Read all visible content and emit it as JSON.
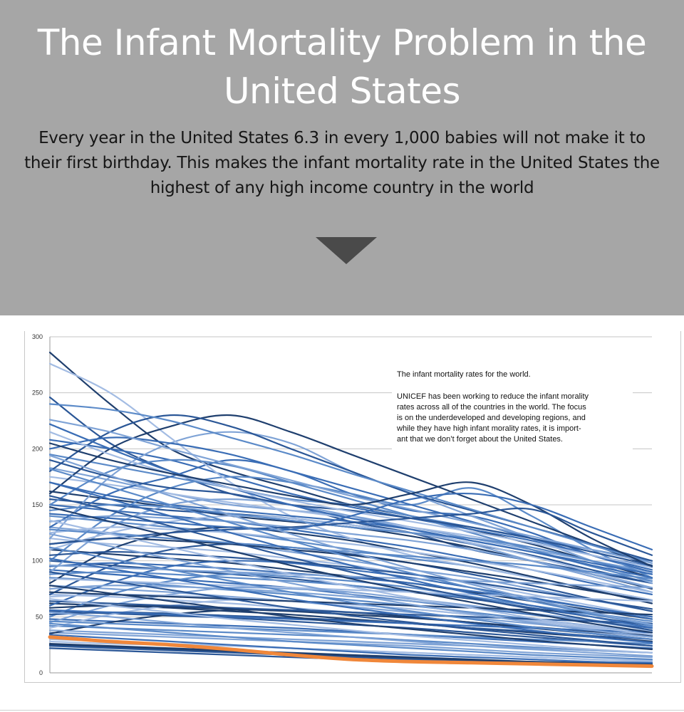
{
  "header": {
    "title": "The Infant Mortality Problem in the United States",
    "intro": "Every year in the United States 6.3 in every 1,000 babies will not make it to their first birthday. This makes the infant mortality rate in the United States the highest of any high income country in the world"
  },
  "chart_data": {
    "type": "line",
    "title": "",
    "xlabel": "",
    "ylabel": "",
    "ylim": [
      0,
      300
    ],
    "yticks": [
      0,
      50,
      100,
      150,
      200,
      250,
      300
    ],
    "grid": true,
    "x": [
      0,
      1,
      2,
      3,
      4,
      5,
      6,
      7,
      8,
      9,
      10
    ],
    "annotation": {
      "heading": "The infant mortality rates for the world.",
      "lines": [
        "UNICEF has been working to reduce the infant morality",
        "rates across all of the countries in the world. The focus",
        "is on the underdeveloped and developing regions, and",
        "while they have high infant morality rates, it is import-",
        "ant that we don’t forget about the United States."
      ]
    },
    "highlight_color": "#f0873a",
    "series_colors": [
      "#1f3f6e",
      "#2b5797",
      "#3a6db5",
      "#5b8ac8",
      "#7fa3d6",
      "#a3bce3"
    ],
    "highlight": {
      "values": [
        32,
        28,
        25,
        21,
        16,
        12,
        10,
        9,
        8,
        7,
        6
      ]
    },
    "series": [
      {
        "values": [
          286,
          240,
          200,
          180,
          165,
          150,
          140,
          128,
          115,
          100,
          85
        ]
      },
      {
        "values": [
          246,
          205,
          180,
          160,
          150,
          135,
          125,
          110,
          100,
          90,
          80
        ]
      },
      {
        "values": [
          208,
          200,
          190,
          175,
          160,
          148,
          138,
          128,
          118,
          105,
          95
        ]
      },
      {
        "values": [
          195,
          185,
          175,
          165,
          155,
          150,
          140,
          130,
          120,
          110,
          100
        ]
      },
      {
        "values": [
          183,
          172,
          160,
          150,
          145,
          140,
          130,
          120,
          110,
          100,
          90
        ]
      },
      {
        "values": [
          175,
          168,
          160,
          152,
          145,
          138,
          130,
          122,
          112,
          100,
          88
        ]
      },
      {
        "values": [
          162,
          155,
          148,
          140,
          135,
          130,
          122,
          112,
          100,
          88,
          75
        ]
      },
      {
        "values": [
          155,
          150,
          145,
          142,
          138,
          132,
          125,
          115,
          105,
          92,
          80
        ]
      },
      {
        "values": [
          150,
          145,
          140,
          135,
          128,
          120,
          112,
          102,
          92,
          80,
          70
        ]
      },
      {
        "values": [
          140,
          135,
          130,
          125,
          118,
          110,
          102,
          95,
          85,
          75,
          65
        ]
      },
      {
        "values": [
          130,
          125,
          120,
          115,
          108,
          100,
          92,
          85,
          75,
          65,
          55
        ]
      },
      {
        "values": [
          120,
          115,
          112,
          108,
          102,
          96,
          88,
          80,
          70,
          60,
          50
        ]
      },
      {
        "values": [
          110,
          106,
          102,
          98,
          92,
          86,
          80,
          72,
          64,
          56,
          48
        ]
      },
      {
        "values": [
          100,
          96,
          92,
          88,
          84,
          78,
          72,
          66,
          58,
          50,
          42
        ]
      },
      {
        "values": [
          92,
          88,
          84,
          80,
          76,
          70,
          64,
          58,
          52,
          46,
          40
        ]
      },
      {
        "values": [
          85,
          82,
          78,
          74,
          70,
          65,
          60,
          54,
          48,
          42,
          36
        ]
      },
      {
        "values": [
          78,
          75,
          72,
          68,
          64,
          59,
          54,
          49,
          44,
          39,
          34
        ]
      },
      {
        "values": [
          70,
          68,
          65,
          62,
          58,
          54,
          50,
          45,
          40,
          36,
          32
        ]
      },
      {
        "values": [
          62,
          60,
          58,
          55,
          52,
          48,
          44,
          40,
          36,
          32,
          28
        ]
      },
      {
        "values": [
          55,
          53,
          51,
          49,
          46,
          43,
          40,
          36,
          32,
          28,
          24
        ]
      },
      {
        "values": [
          48,
          46,
          44,
          42,
          40,
          37,
          34,
          31,
          28,
          25,
          22
        ]
      },
      {
        "values": [
          42,
          40,
          38,
          36,
          34,
          32,
          29,
          26,
          23,
          20,
          18
        ]
      },
      {
        "values": [
          36,
          34,
          32,
          30,
          28,
          26,
          24,
          21,
          18,
          16,
          14
        ]
      },
      {
        "values": [
          30,
          28,
          26,
          24,
          22,
          20,
          18,
          16,
          14,
          12,
          10
        ]
      },
      {
        "values": [
          25,
          23,
          21,
          19,
          17,
          15,
          13,
          11,
          10,
          9,
          8
        ]
      },
      {
        "values": [
          22,
          20,
          18,
          16,
          14,
          12,
          10,
          9,
          8,
          7,
          6
        ]
      },
      {
        "values": [
          130,
          160,
          175,
          190,
          180,
          160,
          145,
          140,
          125,
          105,
          90
        ]
      },
      {
        "values": [
          100,
          140,
          165,
          175,
          170,
          160,
          150,
          165,
          140,
          110,
          85
        ]
      },
      {
        "values": [
          120,
          175,
          205,
          215,
          205,
          180,
          160,
          140,
          120,
          100,
          80
        ]
      },
      {
        "values": [
          276,
          250,
          210,
          170,
          140,
          120,
          105,
          95,
          85,
          75,
          65
        ]
      },
      {
        "values": [
          160,
          200,
          220,
          230,
          215,
          195,
          175,
          155,
          135,
          115,
          95
        ]
      },
      {
        "values": [
          180,
          215,
          230,
          220,
          200,
          180,
          160,
          145,
          130,
          115,
          100
        ]
      },
      {
        "values": [
          200,
          210,
          205,
          195,
          180,
          165,
          150,
          135,
          120,
          105,
          92
        ]
      },
      {
        "values": [
          150,
          180,
          190,
          185,
          170,
          155,
          140,
          125,
          110,
          95,
          82
        ]
      },
      {
        "values": [
          90,
          130,
          150,
          155,
          150,
          140,
          128,
          115,
          100,
          86,
          72
        ]
      },
      {
        "values": [
          110,
          125,
          135,
          140,
          138,
          132,
          125,
          116,
          104,
          90,
          76
        ]
      },
      {
        "values": [
          80,
          110,
          125,
          130,
          125,
          118,
          108,
          98,
          86,
          74,
          62
        ]
      },
      {
        "values": [
          70,
          95,
          110,
          115,
          112,
          106,
          98,
          88,
          78,
          66,
          55
        ]
      },
      {
        "values": [
          60,
          80,
          95,
          100,
          98,
          92,
          85,
          76,
          67,
          58,
          48
        ]
      },
      {
        "values": [
          50,
          70,
          82,
          88,
          86,
          82,
          76,
          68,
          60,
          52,
          44
        ]
      },
      {
        "values": [
          45,
          60,
          70,
          76,
          75,
          72,
          66,
          60,
          53,
          46,
          38
        ]
      },
      {
        "values": [
          40,
          52,
          60,
          65,
          64,
          61,
          57,
          52,
          46,
          40,
          34
        ]
      },
      {
        "values": [
          35,
          45,
          52,
          56,
          56,
          54,
          50,
          45,
          40,
          35,
          30
        ]
      },
      {
        "values": [
          190,
          175,
          165,
          160,
          150,
          145,
          138,
          130,
          120,
          108,
          96
        ]
      },
      {
        "values": [
          170,
          158,
          150,
          145,
          140,
          135,
          128,
          118,
          108,
          96,
          85
        ]
      },
      {
        "values": [
          145,
          150,
          148,
          142,
          136,
          130,
          125,
          120,
          112,
          100,
          88
        ]
      },
      {
        "values": [
          135,
          140,
          138,
          135,
          130,
          124,
          118,
          110,
          100,
          88,
          76
        ]
      },
      {
        "values": [
          125,
          130,
          128,
          125,
          120,
          115,
          108,
          100,
          92,
          82,
          72
        ]
      },
      {
        "values": [
          115,
          120,
          118,
          115,
          110,
          105,
          98,
          90,
          82,
          73,
          64
        ]
      },
      {
        "values": [
          105,
          108,
          106,
          103,
          99,
          94,
          88,
          81,
          73,
          65,
          57
        ]
      },
      {
        "values": [
          95,
          98,
          96,
          93,
          89,
          85,
          80,
          73,
          66,
          58,
          50
        ]
      },
      {
        "values": [
          88,
          90,
          88,
          85,
          82,
          78,
          73,
          67,
          60,
          53,
          46
        ]
      },
      {
        "values": [
          75,
          78,
          77,
          75,
          72,
          68,
          64,
          59,
          53,
          47,
          41
        ]
      },
      {
        "values": [
          68,
          70,
          69,
          67,
          64,
          61,
          57,
          52,
          47,
          42,
          37
        ]
      },
      {
        "values": [
          58,
          60,
          59,
          57,
          55,
          52,
          49,
          45,
          41,
          37,
          33
        ]
      },
      {
        "values": [
          52,
          54,
          53,
          51,
          49,
          47,
          44,
          40,
          37,
          33,
          30
        ]
      },
      {
        "values": [
          222,
          200,
          180,
          165,
          150,
          138,
          128,
          118,
          108,
          98,
          88
        ]
      },
      {
        "values": [
          240,
          235,
          225,
          210,
          195,
          178,
          162,
          146,
          130,
          114,
          98
        ]
      },
      {
        "values": [
          226,
          215,
          200,
          186,
          172,
          158,
          146,
          134,
          122,
          110,
          98
        ]
      },
      {
        "values": [
          215,
          195,
          178,
          165,
          154,
          144,
          135,
          126,
          116,
          105,
          94
        ]
      },
      {
        "values": [
          205,
          190,
          178,
          168,
          158,
          150,
          160,
          170,
          150,
          120,
          95
        ]
      },
      {
        "values": [
          115,
          120,
          125,
          128,
          130,
          134,
          138,
          142,
          146,
          125,
          105
        ]
      },
      {
        "values": [
          142,
          138,
          134,
          130,
          128,
          140,
          155,
          160,
          150,
          130,
          110
        ]
      },
      {
        "values": [
          128,
          124,
          120,
          116,
          112,
          108,
          104,
          100,
          96,
          90,
          84
        ]
      },
      {
        "values": [
          96,
          94,
          92,
          90,
          88,
          86,
          84,
          82,
          80,
          78,
          76
        ]
      },
      {
        "values": [
          84,
          82,
          80,
          78,
          76,
          74,
          72,
          70,
          68,
          66,
          64
        ]
      },
      {
        "values": [
          72,
          70,
          68,
          66,
          64,
          62,
          60,
          58,
          56,
          54,
          52
        ]
      },
      {
        "values": [
          64,
          62,
          60,
          58,
          56,
          54,
          52,
          50,
          48,
          46,
          44
        ]
      },
      {
        "values": [
          56,
          54,
          52,
          50,
          48,
          46,
          44,
          42,
          40,
          38,
          36
        ]
      },
      {
        "values": [
          46,
          44,
          42,
          40,
          38,
          36,
          34,
          32,
          30,
          28,
          26
        ]
      },
      {
        "values": [
          38,
          36,
          34,
          32,
          30,
          28,
          26,
          24,
          22,
          20,
          18
        ]
      },
      {
        "values": [
          28,
          26,
          25,
          24,
          22,
          20,
          18,
          16,
          14,
          12,
          11
        ]
      },
      {
        "values": [
          26,
          24,
          22,
          20,
          18,
          16,
          14,
          12,
          10,
          8,
          7
        ]
      },
      {
        "values": [
          24,
          22,
          20,
          18,
          16,
          14,
          12,
          10,
          9,
          8,
          7
        ]
      },
      {
        "values": [
          34,
          31,
          28,
          25,
          22,
          19,
          16,
          14,
          12,
          10,
          9
        ]
      },
      {
        "values": [
          44,
          40,
          36,
          32,
          28,
          25,
          22,
          19,
          16,
          14,
          12
        ]
      },
      {
        "values": [
          54,
          50,
          45,
          40,
          36,
          32,
          28,
          24,
          21,
          18,
          15
        ]
      },
      {
        "values": [
          66,
          60,
          54,
          48,
          43,
          38,
          33,
          29,
          25,
          21,
          18
        ]
      },
      {
        "values": [
          78,
          71,
          64,
          57,
          50,
          44,
          39,
          34,
          29,
          25,
          21
        ]
      },
      {
        "values": [
          90,
          82,
          74,
          66,
          58,
          51,
          45,
          39,
          34,
          29,
          24
        ]
      },
      {
        "values": [
          102,
          93,
          84,
          75,
          66,
          58,
          51,
          44,
          38,
          32,
          27
        ]
      },
      {
        "values": [
          112,
          102,
          92,
          82,
          72,
          63,
          55,
          48,
          41,
          35,
          30
        ]
      },
      {
        "values": [
          124,
          113,
          102,
          91,
          80,
          70,
          61,
          53,
          45,
          38,
          32
        ]
      },
      {
        "values": [
          136,
          124,
          112,
          100,
          88,
          77,
          67,
          58,
          49,
          41,
          34
        ]
      },
      {
        "values": [
          148,
          135,
          122,
          109,
          96,
          84,
          73,
          63,
          53,
          44,
          36
        ]
      },
      {
        "values": [
          158,
          145,
          131,
          117,
          103,
          90,
          78,
          67,
          57,
          47,
          38
        ]
      },
      {
        "values": [
          170,
          155,
          140,
          125,
          110,
          96,
          83,
          71,
          60,
          50,
          40
        ]
      },
      {
        "values": [
          182,
          166,
          150,
          134,
          118,
          103,
          89,
          76,
          64,
          53,
          42
        ]
      },
      {
        "values": [
          194,
          176,
          158,
          141,
          124,
          108,
          93,
          79,
          66,
          54,
          43
        ]
      }
    ]
  }
}
